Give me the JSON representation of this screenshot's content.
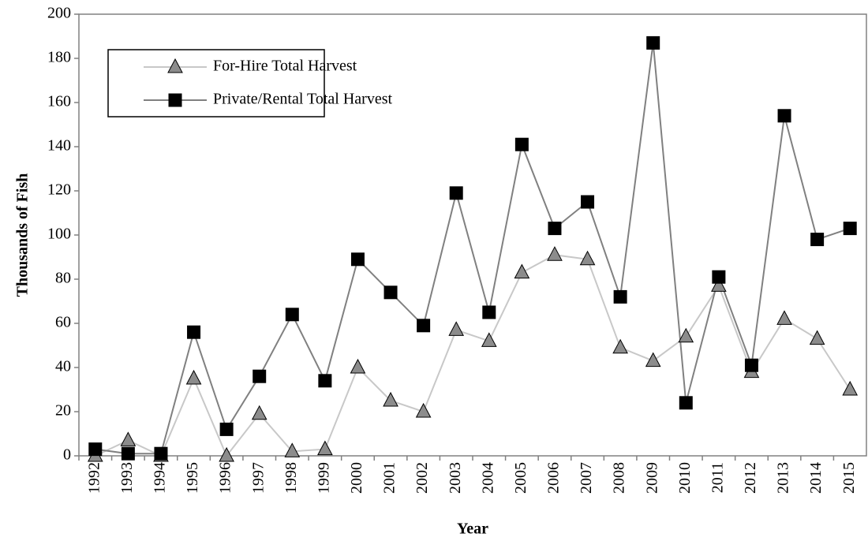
{
  "chart_data": {
    "type": "line",
    "x_label": "Year",
    "y_label": "Thousands of Fish",
    "categories": [
      "1992",
      "1993",
      "1994",
      "1995",
      "1996",
      "1997",
      "1998",
      "1999",
      "2000",
      "2001",
      "2002",
      "2003",
      "2004",
      "2005",
      "2006",
      "2007",
      "2008",
      "2009",
      "2010",
      "2011",
      "2012",
      "2013",
      "2014",
      "2015"
    ],
    "series": [
      {
        "name": "For-Hire Total Harvest",
        "color": "#c8c8c8",
        "marker": "triangle",
        "marker_color": "#8c8c8c",
        "values": [
          0,
          7,
          0,
          35,
          0,
          19,
          2,
          3,
          40,
          25,
          20,
          57,
          52,
          83,
          91,
          89,
          49,
          43,
          54,
          77,
          38,
          62,
          53,
          30
        ]
      },
      {
        "name": "Private/Rental Total Harvest",
        "color": "#808080",
        "marker": "square",
        "marker_color": "#000000",
        "values": [
          3,
          1,
          1,
          56,
          12,
          36,
          64,
          34,
          89,
          74,
          59,
          119,
          65,
          141,
          103,
          115,
          72,
          187,
          24,
          81,
          41,
          154,
          98,
          103
        ]
      }
    ],
    "ylim": [
      0,
      200
    ],
    "yticks": [
      0,
      20,
      40,
      60,
      80,
      100,
      120,
      140,
      160,
      180,
      200
    ],
    "grid": false
  }
}
